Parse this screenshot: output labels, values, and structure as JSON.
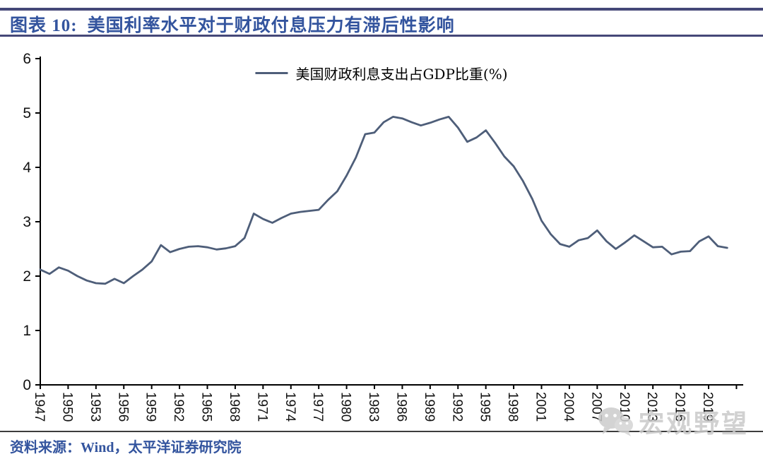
{
  "header": {
    "tag": "图表 10:",
    "title": "美国利率水平对于财政付息压力有滞后性影响"
  },
  "footer": {
    "source": "资料来源：Wind，太平洋证券研究院"
  },
  "watermark": {
    "text": "宏观野望",
    "icon": "wechat-icon"
  },
  "colors": {
    "rule": "#454878",
    "title_text": "#33549E",
    "axis": "#000000",
    "tick_label": "#111111",
    "line": "#4E5E79",
    "watermark": "#C9C9C9"
  },
  "chart_data": {
    "type": "line",
    "title": "美国财政利息支出占GDP比重(%)",
    "grid": false,
    "legend_position": "top-center",
    "line_color": "#4E5E79",
    "ylim": [
      0,
      6
    ],
    "yticks": [
      0,
      1,
      2,
      3,
      4,
      5,
      6
    ],
    "xtick_years": [
      1947,
      1950,
      1953,
      1956,
      1959,
      1962,
      1965,
      1968,
      1971,
      1974,
      1977,
      1980,
      1983,
      1986,
      1989,
      1992,
      1995,
      1998,
      2001,
      2004,
      2007,
      2010,
      2013,
      2016,
      2019
    ],
    "series": [
      {
        "name": "美国财政利息支出占GDP比重(%)",
        "x": [
          1947,
          1948,
          1949,
          1950,
          1951,
          1952,
          1953,
          1954,
          1955,
          1956,
          1957,
          1958,
          1959,
          1960,
          1961,
          1962,
          1963,
          1964,
          1965,
          1966,
          1967,
          1968,
          1969,
          1970,
          1971,
          1972,
          1973,
          1974,
          1975,
          1976,
          1977,
          1978,
          1979,
          1980,
          1981,
          1982,
          1983,
          1984,
          1985,
          1986,
          1987,
          1988,
          1989,
          1990,
          1991,
          1992,
          1993,
          1994,
          1995,
          1996,
          1997,
          1998,
          1999,
          2000,
          2001,
          2002,
          2003,
          2004,
          2005,
          2006,
          2007,
          2008,
          2009,
          2010,
          2011,
          2012,
          2013,
          2014,
          2015,
          2016,
          2017,
          2018,
          2019,
          2020,
          2021
        ],
        "values": [
          2.12,
          2.04,
          2.16,
          2.1,
          2.0,
          1.92,
          1.87,
          1.86,
          1.95,
          1.87,
          2.0,
          2.12,
          2.27,
          2.57,
          2.44,
          2.5,
          2.54,
          2.55,
          2.53,
          2.49,
          2.51,
          2.55,
          2.7,
          3.15,
          3.05,
          2.98,
          3.07,
          3.15,
          3.18,
          3.2,
          3.22,
          3.4,
          3.56,
          3.85,
          4.18,
          4.61,
          4.64,
          4.83,
          4.93,
          4.9,
          4.83,
          4.77,
          4.82,
          4.88,
          4.93,
          4.73,
          4.47,
          4.55,
          4.68,
          4.45,
          4.2,
          4.02,
          3.75,
          3.42,
          3.02,
          2.77,
          2.59,
          2.54,
          2.66,
          2.7,
          2.84,
          2.64,
          2.5,
          2.62,
          2.75,
          2.64,
          2.53,
          2.54,
          2.4,
          2.45,
          2.46,
          2.64,
          2.73,
          2.55,
          2.52
        ]
      }
    ]
  }
}
